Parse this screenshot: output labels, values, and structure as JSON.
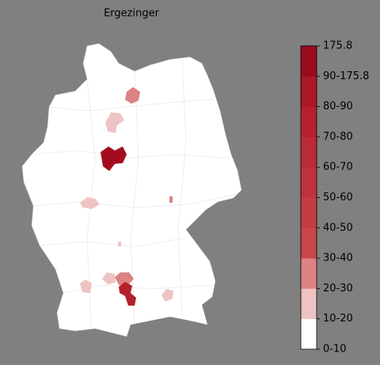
{
  "title": "Ergezinger",
  "colorbar": {
    "labels": [
      "0-10",
      "10-20",
      "20-30",
      "30-40",
      "40-50",
      "50-60",
      "60-70",
      "70-80",
      "80-90",
      "90-175.8",
      "175.8"
    ],
    "colors": [
      "#ffffff",
      "#efc3c3",
      "#dc8282",
      "#c9464b",
      "#c53c43",
      "#c0333c",
      "#bb2a35",
      "#b4212d",
      "#aa1726",
      "#9c0a1d"
    ]
  }
}
